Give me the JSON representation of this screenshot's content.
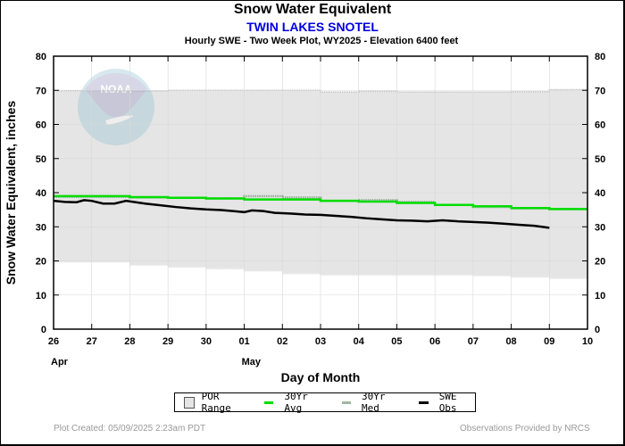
{
  "header": {
    "title": "Snow Water Equivalent",
    "station": "TWIN LAKES SNOTEL",
    "subtitle": "Hourly SWE - Two Week Plot, WY2025 -  Elevation 6400 feet"
  },
  "legend": {
    "items": [
      {
        "label": "POR Range",
        "kind": "box",
        "color": "#e5e5e5"
      },
      {
        "label": "30Yr Avg",
        "kind": "line",
        "color": "#00dd00"
      },
      {
        "label": "30Yr Med",
        "kind": "line",
        "color": "#a0b8a0"
      },
      {
        "label": "SWE Obs",
        "kind": "line",
        "color": "#000000"
      }
    ]
  },
  "footer": {
    "created": "Plot Created: 05/09/2025 2:23am PDT",
    "credit": "Observations Provided by NRCS"
  },
  "colors": {
    "por_fill": "#e5e5e5",
    "avg": "#00dd00",
    "med": "#99aa99",
    "obs": "#000000",
    "grid": "#d8d8d8"
  },
  "chart_data": {
    "type": "area",
    "title": "Snow Water Equivalent",
    "xlabel": "Day of Month",
    "ylabel": "Snow Water Equivalent, inches",
    "ylim": [
      0,
      80
    ],
    "yticks": [
      0,
      10,
      20,
      30,
      40,
      50,
      60,
      70,
      80
    ],
    "x_tick_labels": [
      "26",
      "27",
      "28",
      "29",
      "30",
      "01",
      "02",
      "03",
      "04",
      "05",
      "06",
      "07",
      "08",
      "09",
      "10"
    ],
    "month_labels": [
      {
        "at": 0,
        "label": "Apr"
      },
      {
        "at": 5,
        "label": "May"
      }
    ],
    "grid": true,
    "legend_position": "bottom",
    "x_units": "days from Apr 26",
    "series": [
      {
        "name": "POR Range",
        "kind": "band",
        "max": [
          69.9,
          69.9,
          69.8,
          70.0,
          70.0,
          70.0,
          70.0,
          69.5,
          69.7,
          69.5,
          69.5,
          69.5,
          69.6,
          70.2
        ],
        "min": [
          19.6,
          19.6,
          18.7,
          18.1,
          17.6,
          17.0,
          16.2,
          15.8,
          15.8,
          15.8,
          15.8,
          15.6,
          15.2,
          14.8
        ]
      },
      {
        "name": "30Yr Avg",
        "kind": "step",
        "values": [
          39.0,
          39.0,
          38.7,
          38.5,
          38.3,
          38.0,
          38.0,
          37.6,
          37.4,
          37.0,
          36.4,
          36.0,
          35.5,
          35.2
        ]
      },
      {
        "name": "30Yr Med",
        "kind": "step",
        "values": [
          38.8,
          38.8,
          38.6,
          38.5,
          38.3,
          39.0,
          38.6,
          37.6,
          37.8,
          37.3,
          36.4,
          35.8,
          35.4,
          35.2
        ]
      },
      {
        "name": "SWE Obs",
        "kind": "line",
        "x": [
          0,
          0.3,
          0.6,
          0.8,
          1.0,
          1.3,
          1.6,
          1.9,
          2.1,
          2.4,
          2.8,
          3.2,
          3.6,
          4.0,
          4.4,
          4.8,
          5.0,
          5.2,
          5.5,
          5.8,
          6.2,
          6.6,
          7.0,
          7.4,
          7.8,
          8.2,
          8.6,
          9.0,
          9.4,
          9.8,
          10.2,
          10.6,
          11.0,
          11.4,
          11.8,
          12.2,
          12.6,
          13.0
        ],
        "values": [
          37.6,
          37.3,
          37.2,
          37.8,
          37.6,
          36.8,
          36.8,
          37.6,
          37.3,
          36.8,
          36.3,
          35.8,
          35.4,
          35.1,
          34.9,
          34.5,
          34.3,
          34.8,
          34.6,
          34.1,
          33.9,
          33.6,
          33.5,
          33.2,
          32.9,
          32.5,
          32.2,
          31.9,
          31.8,
          31.6,
          31.9,
          31.6,
          31.4,
          31.2,
          30.9,
          30.6,
          30.3,
          29.7
        ]
      }
    ]
  }
}
